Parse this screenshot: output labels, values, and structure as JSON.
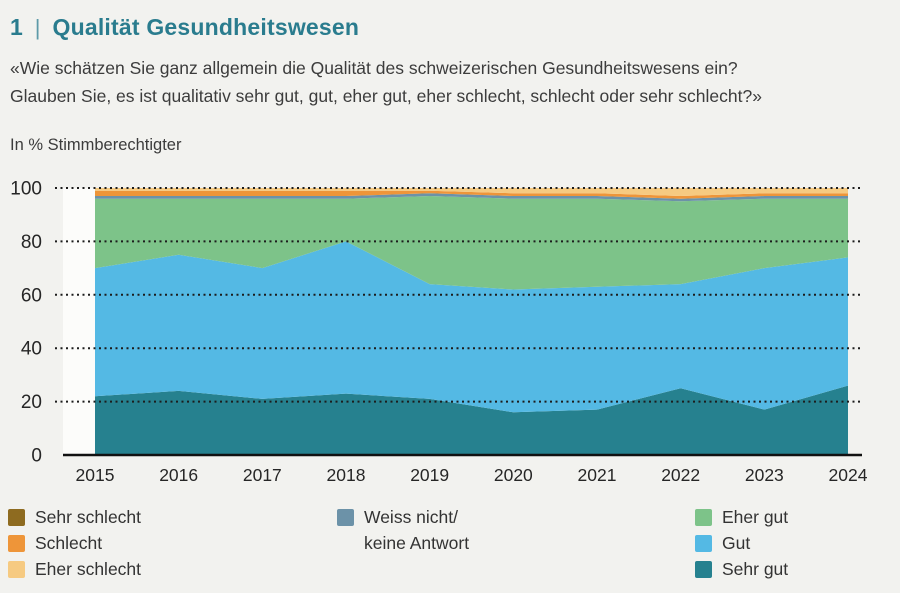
{
  "header": {
    "number": "1",
    "divider": "|",
    "title": "Qualität Gesundheitswesen"
  },
  "subtitle_lines": [
    "«Wie schätzen Sie ganz allgemein die Qualität des schweizerischen Gesundheitswesens ein?",
    "Glauben Sie, es ist qualitativ sehr gut, gut, eher gut, eher schlecht, schlecht oder sehr schlecht?»"
  ],
  "axis_note": "In % Stimmberechtigter",
  "colors": {
    "title_accent": "#2a7c8e",
    "background": "#f2f2ef",
    "plot_background": "#fcfcfa",
    "gridline": "#1c1c1c",
    "axis_line": "#111111"
  },
  "chart_data": {
    "type": "area",
    "stacked": true,
    "title": "Qualität Gesundheitswesen",
    "ylabel": "In % Stimmberechtigter",
    "ylim": [
      0,
      100
    ],
    "yticks": [
      0,
      20,
      40,
      60,
      80,
      100
    ],
    "grid": "dotted-horizontal",
    "legend_position": "bottom",
    "x": [
      2015,
      2016,
      2017,
      2018,
      2019,
      2020,
      2021,
      2022,
      2023,
      2024
    ],
    "series": [
      {
        "key": "sehr_gut",
        "name": "Sehr gut",
        "color": "#26818f",
        "values": [
          22,
          24,
          21,
          23,
          21,
          16,
          17,
          25,
          17,
          26
        ]
      },
      {
        "key": "gut",
        "name": "Gut",
        "color": "#54b9e4",
        "values": [
          48,
          51,
          49,
          57,
          43,
          46,
          46,
          39,
          53,
          48
        ]
      },
      {
        "key": "eher_gut",
        "name": "Eher gut",
        "color": "#7dc389",
        "values": [
          26,
          21,
          26,
          16,
          33,
          34,
          33,
          31,
          26,
          22
        ]
      },
      {
        "key": "weiss_nicht",
        "name": "Weiss nicht/keine Antwort",
        "color": "#6c92a8",
        "values": [
          1,
          1,
          1,
          1,
          1,
          1,
          1,
          1,
          1,
          1
        ]
      },
      {
        "key": "sehr_schlecht",
        "name": "Sehr schlecht",
        "color": "#8e6b20",
        "values": [
          0,
          0,
          0,
          0,
          0,
          0,
          0,
          0,
          0,
          0
        ]
      },
      {
        "key": "schlecht",
        "name": "Schlecht",
        "color": "#ee9539",
        "values": [
          2,
          2,
          2,
          2,
          1,
          1,
          1,
          1,
          1,
          1
        ]
      },
      {
        "key": "eher_schlecht",
        "name": "Eher schlecht",
        "color": "#f6ca81",
        "values": [
          1,
          1,
          1,
          1,
          1,
          2,
          2,
          3,
          2,
          2
        ]
      }
    ]
  },
  "legend": {
    "columns": [
      {
        "items": [
          {
            "label": "Sehr schlecht",
            "color": "#8e6b20"
          },
          {
            "label": "Schlecht",
            "color": "#ee9539"
          },
          {
            "label": "Eher schlecht",
            "color": "#f6ca81"
          }
        ]
      },
      {
        "items": [
          {
            "label": "Weiss nicht/",
            "color": "#6c92a8"
          },
          {
            "label": "keine Antwort",
            "color": null
          }
        ]
      },
      {
        "items": [
          {
            "label": "Eher gut",
            "color": "#7dc389"
          },
          {
            "label": "Gut",
            "color": "#54b9e4"
          },
          {
            "label": "Sehr gut",
            "color": "#26818f"
          }
        ]
      }
    ]
  }
}
